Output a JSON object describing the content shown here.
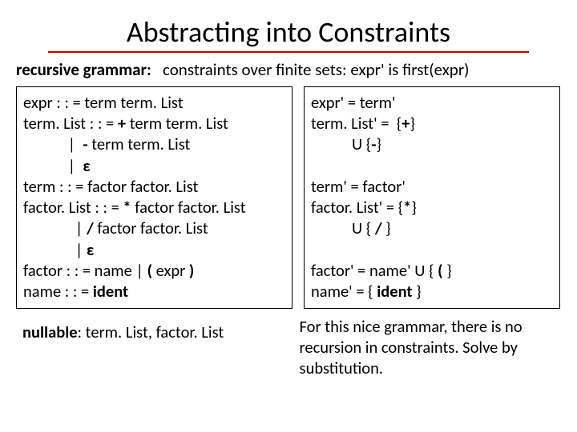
{
  "title": "Abstracting into Constraints",
  "subhead_left": "recursive grammar:",
  "subhead_right": "   constraints over finite sets: expr' is first(expr)",
  "grammar": {
    "l1a": "expr : : = term term. List",
    "l2a": "term. List : : = ",
    "l2b": "+",
    "l2c": " term term. List",
    "l3a": "            |  ",
    "l3b": "-",
    "l3c": " term term. List",
    "l4a": "            |  ",
    "l4b": "ε",
    "l5a": "term : : = factor factor. List",
    "l6a": "factor. List : : = ",
    "l6b": "*",
    "l6c": " factor factor. List",
    "l7a": "              | ",
    "l7b": "/",
    "l7c": " factor factor. List",
    "l8a": "              | ",
    "l8b": "ε",
    "l9a": "factor : : = name | ",
    "l9b": "(",
    "l9c": " expr ",
    "l9d": ")",
    "l10a": "name : : = ",
    "l10b": "ident"
  },
  "constraints": {
    "l1": "expr' = term'",
    "l2a": "term. List' =  {",
    "l2b": "+",
    "l2c": "}",
    "l3a": "           U {",
    "l3b": "-",
    "l3c": "}",
    "blank1": " ",
    "l4": "term' = factor'",
    "l5a": "factor. List' = {",
    "l5b": "*",
    "l5c": "}",
    "l6a": "           U { ",
    "l6b": "/",
    "l6c": " }",
    "blank2": " ",
    "l7a": "factor' = name' U { ",
    "l7b": "(",
    "l7c": " }",
    "l8a": "name' = { ",
    "l8b": "ident",
    "l8c": " }"
  },
  "footer_left_label": "nullable",
  "footer_left_rest": ": term. List, factor. List",
  "footer_right": "For this nice grammar, there is no recursion in constraints. Solve by substitution."
}
